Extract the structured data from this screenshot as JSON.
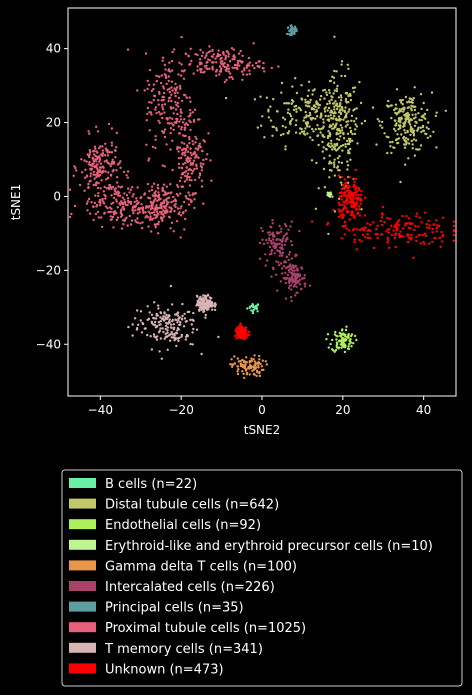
{
  "chart_data": {
    "type": "scatter",
    "xlabel": "tSNE2",
    "ylabel": "tSNE1",
    "xlim": [
      -48,
      48
    ],
    "ylim": [
      -54,
      51
    ],
    "xticks": [
      -40,
      -20,
      0,
      20,
      40
    ],
    "yticks": [
      -40,
      -20,
      0,
      20,
      40
    ],
    "grid": false,
    "legend_position": "below",
    "series": [
      {
        "name": "B cells (n=22)",
        "color": "#6af0a6",
        "n": 22,
        "clusters": [
          {
            "cx": -2,
            "cy": -30,
            "sx": 0.8,
            "sy": 0.6
          }
        ]
      },
      {
        "name": "Distal tubule cells (n=642)",
        "color": "#c0c86a",
        "n": 642,
        "clusters": [
          {
            "cx": 12,
            "cy": 22,
            "sx": 6,
            "sy": 4
          },
          {
            "cx": 19,
            "cy": 17,
            "sx": 2.5,
            "sy": 8
          },
          {
            "cx": 36,
            "cy": 20,
            "sx": 3,
            "sy": 4
          }
        ]
      },
      {
        "name": "Endothelial cells (n=92)",
        "color": "#aef05a",
        "n": 92,
        "clusters": [
          {
            "cx": 20,
            "cy": -39,
            "sx": 1.4,
            "sy": 1.6
          }
        ]
      },
      {
        "name": "Erythroid-like and erythroid precursor cells (n=10)",
        "color": "#bff590",
        "n": 10,
        "clusters": [
          {
            "cx": 16.5,
            "cy": 0.5,
            "sx": 0.3,
            "sy": 0.3
          }
        ]
      },
      {
        "name": "Gamma delta T cells (n=100)",
        "color": "#e8964a",
        "n": 100,
        "clusters": [
          {
            "cx": -3.5,
            "cy": -46,
            "sx": 2,
            "sy": 1.4
          }
        ]
      },
      {
        "name": "Intercalated cells (n=226)",
        "color": "#a8426a",
        "n": 226,
        "clusters": [
          {
            "cx": 4,
            "cy": -13,
            "sx": 2,
            "sy": 3
          },
          {
            "cx": 8,
            "cy": -22,
            "sx": 1.5,
            "sy": 2
          }
        ]
      },
      {
        "name": "Principal cells (n=35)",
        "color": "#5e9ea0",
        "n": 35,
        "clusters": [
          {
            "cx": 7.5,
            "cy": 45,
            "sx": 0.6,
            "sy": 0.6
          }
        ]
      },
      {
        "name": "Proximal tubule cells (n=1025)",
        "color": "#e8607a",
        "n": 1025,
        "clusters": [
          {
            "cx": -40,
            "cy": 8,
            "sx": 2.5,
            "sy": 4
          },
          {
            "cx": -35,
            "cy": -2,
            "sx": 5,
            "sy": 3
          },
          {
            "cx": -26,
            "cy": -3,
            "sx": 2.5,
            "sy": 3
          },
          {
            "cx": -23,
            "cy": 25,
            "sx": 3,
            "sy": 7
          },
          {
            "cx": -18,
            "cy": 10,
            "sx": 2,
            "sy": 7
          },
          {
            "cx": -10,
            "cy": 36,
            "sx": 5,
            "sy": 2
          }
        ]
      },
      {
        "name": "T memory cells (n=341)",
        "color": "#d8b4b4",
        "n": 341,
        "clusters": [
          {
            "cx": -24,
            "cy": -35,
            "sx": 4,
            "sy": 3
          },
          {
            "cx": -14,
            "cy": -29,
            "sx": 1,
            "sy": 1
          }
        ]
      },
      {
        "name": "Unknown (n=473)",
        "color": "#ff0000",
        "n": 473,
        "clusters": [
          {
            "cx": 33,
            "cy": -9,
            "sx": 7,
            "sy": 2.5
          },
          {
            "cx": 22,
            "cy": -1,
            "sx": 1.5,
            "sy": 3
          },
          {
            "cx": -5,
            "cy": -37,
            "sx": 0.8,
            "sy": 0.8
          }
        ]
      }
    ]
  }
}
